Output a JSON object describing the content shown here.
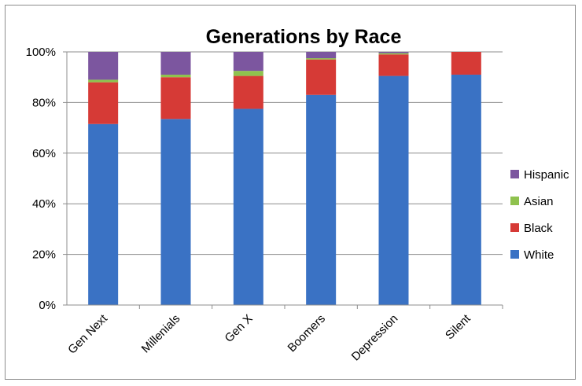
{
  "chart_data": {
    "type": "bar",
    "stacked": true,
    "title": "Generations by Race",
    "xlabel": "",
    "ylabel": "",
    "ylim": [
      0,
      100
    ],
    "yticks": [
      "0%",
      "20%",
      "40%",
      "60%",
      "80%",
      "100%"
    ],
    "grid": true,
    "legend_position": "right",
    "categories": [
      "Gen Next",
      "Millenials",
      "Gen X",
      "Boomers",
      "Depression",
      "Silent"
    ],
    "series": [
      {
        "name": "White",
        "color": "#3a72c4",
        "values": [
          71.5,
          73.5,
          77.5,
          83,
          90.5,
          91
        ]
      },
      {
        "name": "Black",
        "color": "#d63a36",
        "values": [
          16.5,
          16.5,
          13,
          14,
          8.5,
          9
        ]
      },
      {
        "name": "Asian",
        "color": "#8fc24e",
        "values": [
          1,
          1,
          2,
          0.5,
          0.5,
          0
        ]
      },
      {
        "name": "Hispanic",
        "color": "#7c569f",
        "values": [
          11,
          9,
          7.5,
          2.5,
          0.5,
          0
        ]
      }
    ]
  }
}
